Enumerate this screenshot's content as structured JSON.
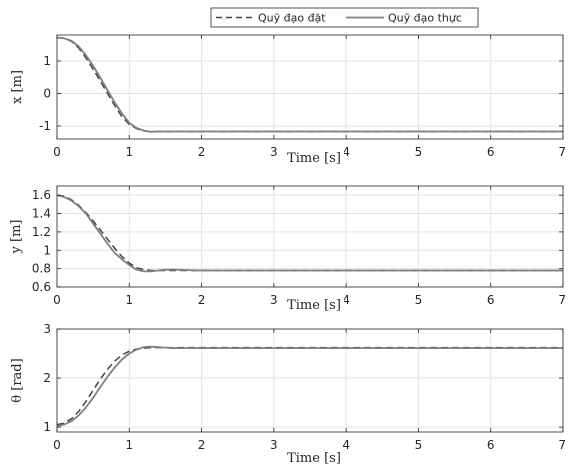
{
  "legend": {
    "entries": [
      {
        "label": "Quỹ đạo đặt",
        "style": "dashed"
      },
      {
        "label": "Quỹ đạo thực",
        "style": "solid"
      }
    ]
  },
  "colors": {
    "reference": "#444444",
    "actual": "#7f7f7f",
    "grid": "#e3e3e3",
    "axis": "#262626"
  },
  "chart_data": [
    {
      "type": "line",
      "xlabel": "Time [s]",
      "ylabel": "x [m]",
      "xlim": [
        0,
        7
      ],
      "ylim": [
        -1.4,
        1.8
      ],
      "xticks": [
        0,
        1,
        2,
        3,
        4,
        5,
        6,
        7
      ],
      "yticks": [
        -1,
        0,
        1
      ],
      "grid": true,
      "legend_position": "top-right (outside)",
      "series": [
        {
          "name": "Quỹ đạo đặt",
          "style": "dashed",
          "x": [
            0,
            0.1,
            0.2,
            0.3,
            0.4,
            0.5,
            0.6,
            0.7,
            0.8,
            0.9,
            1.0,
            1.1,
            1.2,
            1.3,
            1.4,
            1.6,
            2.0,
            3.0,
            4.0,
            5.0,
            6.0,
            7.0
          ],
          "y": [
            1.72,
            1.7,
            1.6,
            1.4,
            1.1,
            0.75,
            0.38,
            0.0,
            -0.38,
            -0.72,
            -0.95,
            -1.08,
            -1.15,
            -1.17,
            -1.17,
            -1.17,
            -1.17,
            -1.17,
            -1.17,
            -1.17,
            -1.17,
            -1.17
          ]
        },
        {
          "name": "Quỹ đạo thực",
          "style": "solid",
          "x": [
            0,
            0.1,
            0.2,
            0.3,
            0.4,
            0.5,
            0.6,
            0.7,
            0.8,
            0.9,
            1.0,
            1.1,
            1.2,
            1.3,
            1.4,
            1.6,
            2.0,
            3.0,
            4.0,
            5.0,
            6.0,
            7.0
          ],
          "y": [
            1.72,
            1.7,
            1.62,
            1.45,
            1.18,
            0.85,
            0.48,
            0.1,
            -0.28,
            -0.62,
            -0.9,
            -1.06,
            -1.14,
            -1.18,
            -1.17,
            -1.17,
            -1.17,
            -1.17,
            -1.17,
            -1.17,
            -1.17,
            -1.17
          ]
        }
      ]
    },
    {
      "type": "line",
      "xlabel": "Time [s]",
      "ylabel": "y [m]",
      "xlim": [
        0,
        7
      ],
      "ylim": [
        0.6,
        1.7
      ],
      "xticks": [
        0,
        1,
        2,
        3,
        4,
        5,
        6,
        7
      ],
      "yticks": [
        0.6,
        0.8,
        1.0,
        1.2,
        1.4,
        1.6
      ],
      "ytick_labels": [
        "0.6",
        "0.8",
        "1",
        "1.2",
        "1.4",
        "1.6"
      ],
      "grid": true,
      "series": [
        {
          "name": "Quỹ đạo đặt",
          "style": "dashed",
          "x": [
            0,
            0.1,
            0.2,
            0.3,
            0.4,
            0.5,
            0.6,
            0.7,
            0.8,
            0.9,
            1.0,
            1.1,
            1.2,
            1.3,
            1.4,
            1.6,
            2.0,
            3.0,
            4.0,
            5.0,
            6.0,
            7.0
          ],
          "y": [
            1.6,
            1.59,
            1.55,
            1.49,
            1.41,
            1.32,
            1.22,
            1.12,
            1.02,
            0.93,
            0.86,
            0.81,
            0.79,
            0.78,
            0.78,
            0.78,
            0.78,
            0.78,
            0.78,
            0.78,
            0.78,
            0.78
          ]
        },
        {
          "name": "Quỹ đạo thực",
          "style": "solid",
          "x": [
            0,
            0.1,
            0.2,
            0.3,
            0.4,
            0.5,
            0.6,
            0.7,
            0.8,
            0.9,
            1.0,
            1.1,
            1.2,
            1.3,
            1.4,
            1.5,
            1.6,
            2.0,
            3.0,
            4.0,
            5.0,
            6.0,
            7.0
          ],
          "y": [
            1.6,
            1.58,
            1.54,
            1.48,
            1.4,
            1.29,
            1.18,
            1.07,
            0.97,
            0.9,
            0.84,
            0.79,
            0.77,
            0.77,
            0.78,
            0.79,
            0.79,
            0.78,
            0.78,
            0.78,
            0.78,
            0.78,
            0.78
          ]
        }
      ]
    },
    {
      "type": "line",
      "xlabel": "Time [s]",
      "ylabel": "θ [rad]",
      "xlim": [
        0,
        7
      ],
      "ylim": [
        0.9,
        3.0
      ],
      "xticks": [
        0,
        1,
        2,
        3,
        4,
        5,
        6,
        7
      ],
      "yticks": [
        1,
        2,
        3
      ],
      "grid": true,
      "series": [
        {
          "name": "Quỹ đạo đặt",
          "style": "dashed",
          "x": [
            0,
            0.1,
            0.2,
            0.3,
            0.4,
            0.5,
            0.6,
            0.7,
            0.8,
            0.9,
            1.0,
            1.1,
            1.2,
            1.3,
            1.4,
            1.6,
            2.0,
            3.0,
            4.0,
            5.0,
            6.0,
            7.0
          ],
          "y": [
            1.05,
            1.08,
            1.17,
            1.32,
            1.52,
            1.75,
            1.98,
            2.18,
            2.35,
            2.47,
            2.55,
            2.59,
            2.61,
            2.62,
            2.62,
            2.62,
            2.62,
            2.62,
            2.62,
            2.62,
            2.62,
            2.62
          ]
        },
        {
          "name": "Quỹ đạo thực",
          "style": "solid",
          "x": [
            0,
            0.1,
            0.2,
            0.3,
            0.4,
            0.5,
            0.6,
            0.7,
            0.8,
            0.9,
            1.0,
            1.1,
            1.2,
            1.3,
            1.4,
            1.5,
            1.6,
            2.0,
            3.0,
            4.0,
            5.0,
            6.0,
            7.0
          ],
          "y": [
            1.02,
            1.05,
            1.12,
            1.24,
            1.4,
            1.6,
            1.82,
            2.03,
            2.22,
            2.38,
            2.5,
            2.58,
            2.63,
            2.64,
            2.63,
            2.62,
            2.61,
            2.61,
            2.61,
            2.61,
            2.61,
            2.61,
            2.61
          ]
        }
      ]
    }
  ]
}
